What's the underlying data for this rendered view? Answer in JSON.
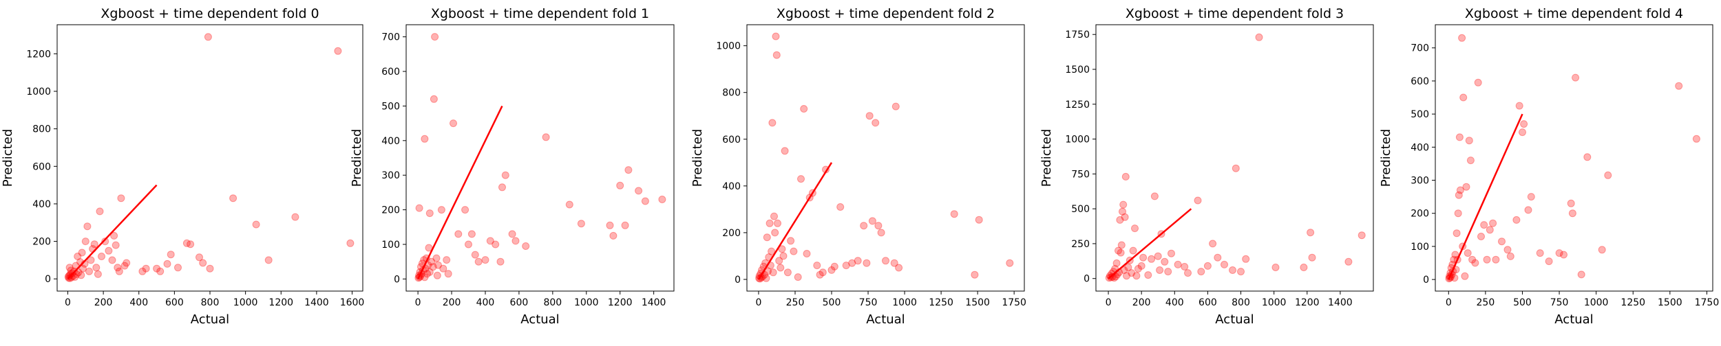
{
  "chart_data": [
    {
      "type": "scatter",
      "title": "Xgboost + time dependent fold 0",
      "xlabel": "Actual",
      "ylabel": "Predicted",
      "xlim": [
        -60,
        1660
      ],
      "ylim": [
        -65,
        1355
      ],
      "xticks": [
        0,
        200,
        400,
        600,
        800,
        1000,
        1200,
        1400,
        1600
      ],
      "yticks": [
        0,
        200,
        400,
        600,
        800,
        1000,
        1200
      ],
      "reference_line": [
        [
          0,
          0
        ],
        [
          500,
          500
        ]
      ],
      "points": [
        [
          5,
          5
        ],
        [
          8,
          18
        ],
        [
          12,
          3
        ],
        [
          15,
          25
        ],
        [
          3,
          12
        ],
        [
          20,
          8
        ],
        [
          25,
          30
        ],
        [
          18,
          45
        ],
        [
          10,
          60
        ],
        [
          30,
          15
        ],
        [
          35,
          40
        ],
        [
          40,
          10
        ],
        [
          45,
          70
        ],
        [
          50,
          25
        ],
        [
          55,
          120
        ],
        [
          60,
          35
        ],
        [
          70,
          90
        ],
        [
          75,
          20
        ],
        [
          80,
          140
        ],
        [
          85,
          55
        ],
        [
          95,
          80
        ],
        [
          100,
          200
        ],
        [
          110,
          280
        ],
        [
          120,
          40
        ],
        [
          130,
          100
        ],
        [
          140,
          160
        ],
        [
          150,
          185
        ],
        [
          160,
          60
        ],
        [
          170,
          25
        ],
        [
          180,
          360
        ],
        [
          190,
          120
        ],
        [
          210,
          200
        ],
        [
          230,
          150
        ],
        [
          250,
          100
        ],
        [
          260,
          230
        ],
        [
          270,
          180
        ],
        [
          280,
          60
        ],
        [
          290,
          40
        ],
        [
          300,
          430
        ],
        [
          320,
          70
        ],
        [
          330,
          85
        ],
        [
          420,
          40
        ],
        [
          440,
          55
        ],
        [
          500,
          55
        ],
        [
          520,
          40
        ],
        [
          560,
          80
        ],
        [
          580,
          130
        ],
        [
          620,
          60
        ],
        [
          670,
          190
        ],
        [
          690,
          185
        ],
        [
          740,
          115
        ],
        [
          760,
          85
        ],
        [
          790,
          1290
        ],
        [
          800,
          55
        ],
        [
          930,
          430
        ],
        [
          1060,
          290
        ],
        [
          1130,
          100
        ],
        [
          1280,
          330
        ],
        [
          1520,
          1215
        ],
        [
          1590,
          190
        ]
      ],
      "series_color": "#ff0000",
      "line_color": "#ff0000"
    },
    {
      "type": "scatter",
      "title": "Xgboost + time dependent fold 1",
      "xlabel": "Actual",
      "ylabel": "Predicted",
      "xlim": [
        -70,
        1520
      ],
      "ylim": [
        -35,
        735
      ],
      "xticks": [
        0,
        200,
        400,
        600,
        800,
        1000,
        1200,
        1400
      ],
      "yticks": [
        0,
        100,
        200,
        300,
        400,
        500,
        600,
        700
      ],
      "reference_line": [
        [
          0,
          0
        ],
        [
          500,
          500
        ]
      ],
      "points": [
        [
          3,
          3
        ],
        [
          6,
          10
        ],
        [
          9,
          5
        ],
        [
          12,
          20
        ],
        [
          15,
          8
        ],
        [
          18,
          35
        ],
        [
          22,
          15
        ],
        [
          26,
          45
        ],
        [
          30,
          25
        ],
        [
          35,
          55
        ],
        [
          40,
          5
        ],
        [
          45,
          30
        ],
        [
          50,
          60
        ],
        [
          55,
          15
        ],
        [
          60,
          40
        ],
        [
          65,
          90
        ],
        [
          70,
          20
        ],
        [
          80,
          50
        ],
        [
          90,
          35
        ],
        [
          95,
          520
        ],
        [
          100,
          700
        ],
        [
          110,
          60
        ],
        [
          115,
          10
        ],
        [
          120,
          40
        ],
        [
          140,
          200
        ],
        [
          150,
          30
        ],
        [
          170,
          55
        ],
        [
          180,
          15
        ],
        [
          210,
          450
        ],
        [
          240,
          130
        ],
        [
          280,
          200
        ],
        [
          300,
          100
        ],
        [
          320,
          130
        ],
        [
          340,
          70
        ],
        [
          360,
          50
        ],
        [
          400,
          55
        ],
        [
          430,
          110
        ],
        [
          460,
          100
        ],
        [
          490,
          50
        ],
        [
          500,
          265
        ],
        [
          520,
          300
        ],
        [
          560,
          130
        ],
        [
          580,
          110
        ],
        [
          640,
          95
        ],
        [
          760,
          410
        ],
        [
          900,
          215
        ],
        [
          970,
          160
        ],
        [
          1140,
          155
        ],
        [
          1160,
          125
        ],
        [
          1200,
          270
        ],
        [
          1230,
          155
        ],
        [
          1250,
          315
        ],
        [
          1310,
          255
        ],
        [
          1350,
          225
        ],
        [
          1450,
          230
        ],
        [
          8,
          205
        ],
        [
          40,
          405
        ],
        [
          70,
          190
        ]
      ],
      "series_color": "#ff0000",
      "line_color": "#ff0000"
    },
    {
      "type": "scatter",
      "title": "Xgboost + time dependent fold 2",
      "xlabel": "Actual",
      "ylabel": "Predicted",
      "xlim": [
        -80,
        1820
      ],
      "ylim": [
        -50,
        1090
      ],
      "xticks": [
        0,
        250,
        500,
        750,
        1000,
        1250,
        1500,
        1750
      ],
      "yticks": [
        0,
        200,
        400,
        600,
        800,
        1000
      ],
      "reference_line": [
        [
          0,
          0
        ],
        [
          500,
          500
        ]
      ],
      "points": [
        [
          3,
          5
        ],
        [
          6,
          15
        ],
        [
          10,
          3
        ],
        [
          14,
          25
        ],
        [
          18,
          8
        ],
        [
          22,
          40
        ],
        [
          28,
          12
        ],
        [
          34,
          55
        ],
        [
          40,
          20
        ],
        [
          46,
          70
        ],
        [
          52,
          5
        ],
        [
          58,
          180
        ],
        [
          64,
          35
        ],
        [
          70,
          95
        ],
        [
          76,
          240
        ],
        [
          82,
          60
        ],
        [
          88,
          120
        ],
        [
          94,
          670
        ],
        [
          100,
          30
        ],
        [
          106,
          270
        ],
        [
          112,
          200
        ],
        [
          118,
          1040
        ],
        [
          124,
          960
        ],
        [
          130,
          240
        ],
        [
          140,
          80
        ],
        [
          150,
          50
        ],
        [
          160,
          130
        ],
        [
          170,
          100
        ],
        [
          180,
          550
        ],
        [
          200,
          30
        ],
        [
          220,
          165
        ],
        [
          240,
          120
        ],
        [
          270,
          10
        ],
        [
          290,
          430
        ],
        [
          310,
          730
        ],
        [
          330,
          110
        ],
        [
          350,
          350
        ],
        [
          370,
          370
        ],
        [
          400,
          60
        ],
        [
          420,
          20
        ],
        [
          440,
          30
        ],
        [
          460,
          470
        ],
        [
          500,
          40
        ],
        [
          520,
          55
        ],
        [
          560,
          310
        ],
        [
          600,
          60
        ],
        [
          640,
          70
        ],
        [
          680,
          80
        ],
        [
          720,
          230
        ],
        [
          740,
          70
        ],
        [
          760,
          700
        ],
        [
          780,
          250
        ],
        [
          800,
          670
        ],
        [
          820,
          230
        ],
        [
          840,
          200
        ],
        [
          870,
          80
        ],
        [
          930,
          70
        ],
        [
          940,
          740
        ],
        [
          960,
          50
        ],
        [
          1340,
          280
        ],
        [
          1510,
          255
        ],
        [
          1480,
          20
        ],
        [
          1720,
          70
        ]
      ],
      "series_color": "#ff0000",
      "line_color": "#ff0000"
    },
    {
      "type": "scatter",
      "title": "Xgboost + time dependent fold 3",
      "xlabel": "Actual",
      "ylabel": "Predicted",
      "xlim": [
        -75,
        1600
      ],
      "ylim": [
        -90,
        1820
      ],
      "xticks": [
        0,
        200,
        400,
        600,
        800,
        1000,
        1200,
        1400
      ],
      "yticks": [
        0,
        250,
        500,
        750,
        1000,
        1250,
        1500,
        1750
      ],
      "reference_line": [
        [
          0,
          0
        ],
        [
          500,
          500
        ]
      ],
      "points": [
        [
          5,
          5
        ],
        [
          10,
          20
        ],
        [
          15,
          8
        ],
        [
          20,
          35
        ],
        [
          25,
          12
        ],
        [
          30,
          50
        ],
        [
          35,
          5
        ],
        [
          40,
          70
        ],
        [
          45,
          15
        ],
        [
          50,
          110
        ],
        [
          55,
          30
        ],
        [
          60,
          200
        ],
        [
          65,
          45
        ],
        [
          70,
          420
        ],
        [
          75,
          185
        ],
        [
          80,
          240
        ],
        [
          85,
          480
        ],
        [
          90,
          530
        ],
        [
          95,
          60
        ],
        [
          100,
          440
        ],
        [
          105,
          730
        ],
        [
          110,
          20
        ],
        [
          120,
          80
        ],
        [
          130,
          130
        ],
        [
          140,
          40
        ],
        [
          150,
          200
        ],
        [
          160,
          360
        ],
        [
          170,
          20
        ],
        [
          180,
          70
        ],
        [
          200,
          90
        ],
        [
          210,
          150
        ],
        [
          240,
          25
        ],
        [
          260,
          140
        ],
        [
          280,
          590
        ],
        [
          300,
          160
        ],
        [
          310,
          60
        ],
        [
          320,
          320
        ],
        [
          340,
          120
        ],
        [
          360,
          50
        ],
        [
          380,
          180
        ],
        [
          420,
          100
        ],
        [
          460,
          85
        ],
        [
          480,
          40
        ],
        [
          540,
          560
        ],
        [
          560,
          50
        ],
        [
          600,
          90
        ],
        [
          630,
          250
        ],
        [
          660,
          150
        ],
        [
          700,
          100
        ],
        [
          750,
          60
        ],
        [
          770,
          790
        ],
        [
          800,
          50
        ],
        [
          830,
          140
        ],
        [
          910,
          1730
        ],
        [
          1010,
          80
        ],
        [
          1180,
          80
        ],
        [
          1220,
          330
        ],
        [
          1230,
          150
        ],
        [
          1450,
          120
        ],
        [
          1530,
          310
        ]
      ],
      "series_color": "#ff0000",
      "line_color": "#ff0000"
    },
    {
      "type": "scatter",
      "title": "Xgboost + time dependent fold 4",
      "xlabel": "Actual",
      "ylabel": "Predicted",
      "xlim": [
        -90,
        1790
      ],
      "ylim": [
        -35,
        770
      ],
      "xticks": [
        0,
        250,
        500,
        750,
        1000,
        1250,
        1500,
        1750
      ],
      "yticks": [
        0,
        100,
        200,
        300,
        400,
        500,
        600,
        700
      ],
      "reference_line": [
        [
          0,
          0
        ],
        [
          500,
          500
        ]
      ],
      "points": [
        [
          3,
          3
        ],
        [
          6,
          10
        ],
        [
          9,
          5
        ],
        [
          12,
          20
        ],
        [
          15,
          8
        ],
        [
          18,
          35
        ],
        [
          22,
          15
        ],
        [
          26,
          45
        ],
        [
          30,
          25
        ],
        [
          35,
          60
        ],
        [
          40,
          5
        ],
        [
          45,
          75
        ],
        [
          50,
          30
        ],
        [
          55,
          140
        ],
        [
          60,
          60
        ],
        [
          65,
          200
        ],
        [
          70,
          255
        ],
        [
          75,
          430
        ],
        [
          80,
          270
        ],
        [
          90,
          730
        ],
        [
          95,
          100
        ],
        [
          100,
          550
        ],
        [
          110,
          10
        ],
        [
          120,
          280
        ],
        [
          130,
          80
        ],
        [
          140,
          420
        ],
        [
          150,
          360
        ],
        [
          160,
          60
        ],
        [
          180,
          50
        ],
        [
          200,
          595
        ],
        [
          220,
          130
        ],
        [
          240,
          165
        ],
        [
          260,
          60
        ],
        [
          280,
          150
        ],
        [
          300,
          170
        ],
        [
          320,
          60
        ],
        [
          360,
          115
        ],
        [
          400,
          90
        ],
        [
          420,
          70
        ],
        [
          460,
          180
        ],
        [
          480,
          525
        ],
        [
          500,
          445
        ],
        [
          510,
          470
        ],
        [
          540,
          210
        ],
        [
          560,
          250
        ],
        [
          620,
          80
        ],
        [
          680,
          55
        ],
        [
          750,
          80
        ],
        [
          780,
          75
        ],
        [
          830,
          230
        ],
        [
          840,
          200
        ],
        [
          860,
          610
        ],
        [
          900,
          15
        ],
        [
          940,
          370
        ],
        [
          1040,
          90
        ],
        [
          1080,
          315
        ],
        [
          1560,
          585
        ],
        [
          1680,
          425
        ]
      ],
      "series_color": "#ff0000",
      "line_color": "#ff0000"
    }
  ]
}
